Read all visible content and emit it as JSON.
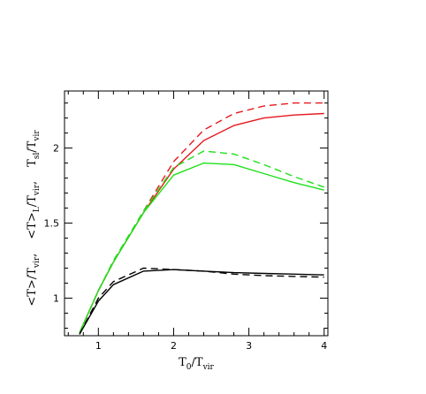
{
  "chart_data": {
    "type": "line",
    "xlabel": {
      "main": "T",
      "sub": "0",
      "rest": "/T",
      "sub2": "vir"
    },
    "ylabel_parts": [
      {
        "main": "<T>",
        "rest": "/T",
        "sub": "vir",
        "suffix": ","
      },
      {
        "main": "<T>",
        "sub0": "L",
        "rest": "/T",
        "sub": "vir",
        "suffix": ","
      },
      {
        "main": "T",
        "sub0": "sl",
        "rest": "/T",
        "sub": "vir",
        "suffix": ""
      }
    ],
    "xlim": [
      0.55,
      4.05
    ],
    "ylim": [
      0.75,
      2.38
    ],
    "xticks": [
      1,
      2,
      3,
      4
    ],
    "yticks": [
      1,
      1.5,
      2
    ],
    "xtick_labels": [
      "1",
      "2",
      "3",
      "4"
    ],
    "ytick_labels": [
      "1",
      "1.5",
      "2"
    ],
    "colors": {
      "red": "#e8171b",
      "green": "#1fe01a",
      "black": "#000000"
    },
    "series": [
      {
        "color": "red",
        "style": "solid",
        "x": [
          0.75,
          1.0,
          1.2,
          1.6,
          2.0,
          2.4,
          2.8,
          3.2,
          3.6,
          4.0
        ],
        "y": [
          0.77,
          1.05,
          1.24,
          1.57,
          1.86,
          2.05,
          2.15,
          2.2,
          2.22,
          2.23
        ]
      },
      {
        "color": "red",
        "style": "dashed",
        "x": [
          0.75,
          1.0,
          1.2,
          1.6,
          2.0,
          2.4,
          2.8,
          3.2,
          3.6,
          4.0
        ],
        "y": [
          0.77,
          1.05,
          1.24,
          1.58,
          1.91,
          2.12,
          2.23,
          2.28,
          2.3,
          2.3
        ]
      },
      {
        "color": "green",
        "style": "solid",
        "x": [
          0.75,
          1.0,
          1.2,
          1.6,
          2.0,
          2.4,
          2.8,
          3.2,
          3.6,
          4.0
        ],
        "y": [
          0.77,
          1.05,
          1.24,
          1.57,
          1.82,
          1.9,
          1.89,
          1.83,
          1.77,
          1.72
        ]
      },
      {
        "color": "green",
        "style": "dashed",
        "x": [
          0.75,
          1.0,
          1.2,
          1.6,
          2.0,
          2.4,
          2.8,
          3.2,
          3.6,
          4.0
        ],
        "y": [
          0.77,
          1.05,
          1.25,
          1.58,
          1.87,
          1.98,
          1.96,
          1.89,
          1.81,
          1.74
        ]
      },
      {
        "color": "black",
        "style": "solid",
        "x": [
          0.75,
          1.0,
          1.2,
          1.6,
          2.0,
          2.4,
          2.8,
          3.2,
          3.6,
          4.0
        ],
        "y": [
          0.76,
          0.98,
          1.09,
          1.18,
          1.19,
          1.18,
          1.17,
          1.165,
          1.16,
          1.155
        ]
      },
      {
        "color": "black",
        "style": "dashed",
        "x": [
          0.75,
          1.0,
          1.2,
          1.6,
          2.0,
          2.4,
          2.8,
          3.2,
          3.6,
          4.0
        ],
        "y": [
          0.76,
          1.0,
          1.11,
          1.2,
          1.19,
          1.18,
          1.16,
          1.15,
          1.145,
          1.14
        ]
      }
    ]
  }
}
